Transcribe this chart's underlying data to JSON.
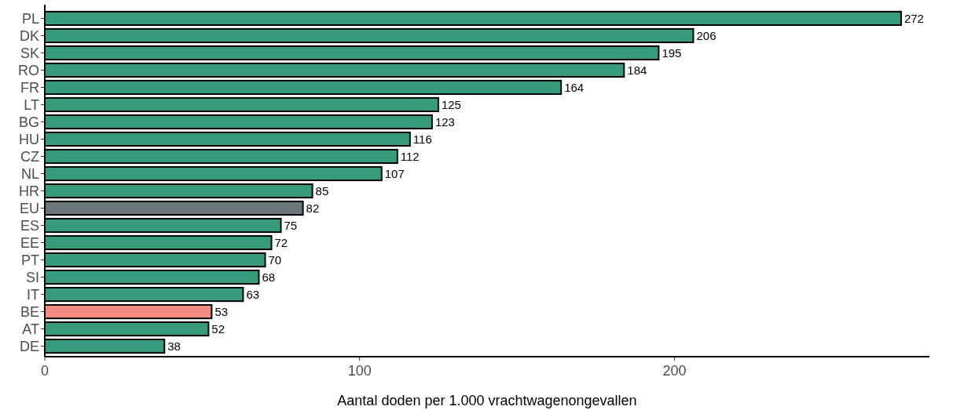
{
  "chart_data": {
    "type": "bar",
    "orientation": "horizontal",
    "xlabel": "Aantal doden per 1.000 vrachtwagenongevallen",
    "categories": [
      "PL",
      "DK",
      "SK",
      "RO",
      "FR",
      "LT",
      "BG",
      "HU",
      "CZ",
      "NL",
      "HR",
      "EU",
      "ES",
      "EE",
      "PT",
      "SI",
      "IT",
      "BE",
      "AT",
      "DE"
    ],
    "values": [
      272,
      206,
      195,
      184,
      164,
      125,
      123,
      116,
      112,
      107,
      85,
      82,
      75,
      72,
      70,
      68,
      63,
      53,
      52,
      38
    ],
    "colors": [
      "#359b7c",
      "#359b7c",
      "#359b7c",
      "#359b7c",
      "#359b7c",
      "#359b7c",
      "#359b7c",
      "#359b7c",
      "#359b7c",
      "#359b7c",
      "#359b7c",
      "#6c777c",
      "#359b7c",
      "#359b7c",
      "#359b7c",
      "#359b7c",
      "#359b7c",
      "#f28b80",
      "#359b7c",
      "#359b7c"
    ],
    "xlim": [
      0,
      281
    ],
    "xticks": [
      0,
      100,
      200
    ],
    "data_labels": true,
    "grid": false
  }
}
